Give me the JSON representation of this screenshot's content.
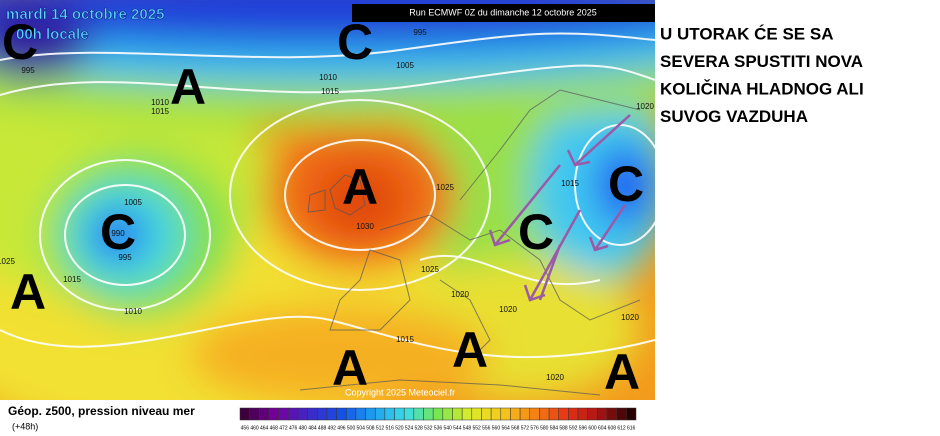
{
  "header": {
    "date": "mardi 14 octobre 2025",
    "time": "00h locale",
    "run": "Run ECMWF 0Z du dimanche 12 octobre 2025"
  },
  "annotation": {
    "lines": [
      "U UTORAK ĆE SE SA",
      "SEVERA SPUSTITI NOVA",
      "KOLIČINA HLADNOG ALI",
      "SUVOG VAZDUHA"
    ]
  },
  "map": {
    "pressure_centers": [
      "C",
      "C",
      "A",
      "A",
      "C",
      "A",
      "C",
      "C",
      "A",
      "A",
      "A"
    ],
    "isobar_labels": [
      995,
      995,
      1010,
      1015,
      1005,
      1010,
      1015,
      1005,
      990,
      995,
      1025,
      1015,
      1010,
      1025,
      1030,
      1015,
      1020,
      1020,
      1020,
      1015,
      1020,
      1020,
      1025
    ],
    "copyright": "Copyright 2025 Meteociel.fr"
  },
  "legend": {
    "title": "Géop. z500, pression niveau mer",
    "lead": "(+48h)",
    "scale": [
      456,
      460,
      464,
      468,
      472,
      476,
      480,
      484,
      488,
      492,
      496,
      500,
      504,
      508,
      512,
      516,
      520,
      524,
      528,
      532,
      536,
      540,
      544,
      548,
      552,
      556,
      560,
      564,
      568,
      572,
      576,
      580,
      584,
      588,
      592,
      596,
      600,
      604,
      608,
      612,
      616
    ]
  }
}
